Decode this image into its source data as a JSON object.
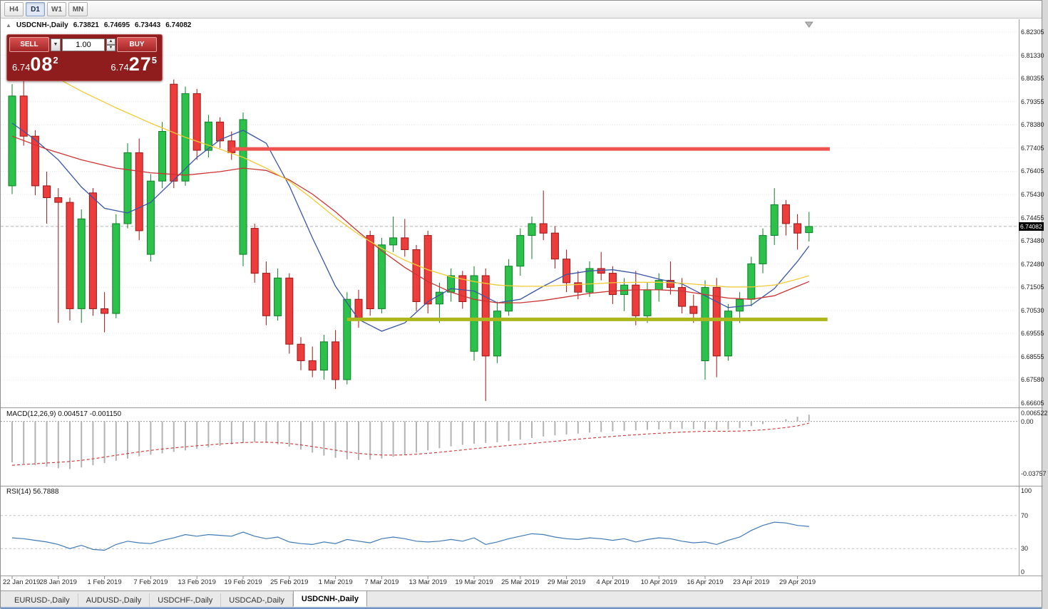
{
  "toolbar": {
    "timeframes": [
      "H4",
      "D1",
      "W1",
      "MN"
    ],
    "active": "D1"
  },
  "symbol_info": {
    "title": "USDCNH-,Daily",
    "ohlc": [
      "6.73821",
      "6.74695",
      "6.73443",
      "6.74082"
    ]
  },
  "trade_panel": {
    "sell_label": "SELL",
    "buy_label": "BUY",
    "volume": "1.00",
    "sell_price": {
      "main": "6.74",
      "pips": "08",
      "pt": "2"
    },
    "buy_price": {
      "main": "6.74",
      "pips": "27",
      "pt": "5"
    }
  },
  "price_axis_labels": [
    "6.82305",
    "6.81330",
    "6.80355",
    "6.79355",
    "6.78380",
    "6.77405",
    "6.76405",
    "6.75430",
    "6.74455",
    "6.73480",
    "6.72480",
    "6.71505",
    "6.70530",
    "6.69555",
    "6.68555",
    "6.67580",
    "6.66605"
  ],
  "current_price": "6.74082",
  "macd_panel": {
    "label": "MACD(12,26,9) 0.004517 -0.001150",
    "axis_labels": [
      "0.006522",
      "0.00",
      "-0.03757"
    ]
  },
  "rsi_panel": {
    "label": "RSI(14) 56.7888",
    "axis_labels": [
      "100",
      "70",
      "30",
      "0"
    ]
  },
  "date_axis": {
    "labels": [
      {
        "text": "22 Jan 2019",
        "index": 0
      },
      {
        "text": "28 Jan 2019",
        "index": 4
      },
      {
        "text": "1 Feb 2019",
        "index": 8
      },
      {
        "text": "7 Feb 2019",
        "index": 12
      },
      {
        "text": "13 Feb 2019",
        "index": 16
      },
      {
        "text": "19 Feb 2019",
        "index": 20
      },
      {
        "text": "25 Feb 2019",
        "index": 24
      },
      {
        "text": "1 Mar 2019",
        "index": 28
      },
      {
        "text": "7 Mar 2019",
        "index": 32
      },
      {
        "text": "13 Mar 2019",
        "index": 36
      },
      {
        "text": "19 Mar 2019",
        "index": 40
      },
      {
        "text": "25 Mar 2019",
        "index": 44
      },
      {
        "text": "29 Mar 2019",
        "index": 48
      },
      {
        "text": "4 Apr 2019",
        "index": 52
      },
      {
        "text": "10 Apr 2019",
        "index": 56
      },
      {
        "text": "16 Apr 2019",
        "index": 60
      },
      {
        "text": "23 Apr 2019",
        "index": 64
      },
      {
        "text": "29 Apr 2019",
        "index": 68
      }
    ]
  },
  "tabs": [
    "EURUSD-,Daily",
    "AUDUSD-,Daily",
    "USDCHF-,Daily",
    "USDCAD-,Daily",
    "USDCNH-,Daily"
  ],
  "active_tab": "USDCNH-,Daily",
  "colors": {
    "up": "#2bc14a",
    "up_border": "#0f7f2a",
    "down": "#ed3c3c",
    "down_border": "#9c1616",
    "ma_fast": "#3a55a4",
    "ma_mid": "#cc3333",
    "ma_slow": "#f1cb35",
    "resistance": "#ef5350",
    "support": "#adb71c",
    "macd_bar": "#b3b3b3",
    "macd_signal": "#cc3333",
    "rsi_line": "#4079b5",
    "price_tag_bg": "#000000"
  },
  "chart_data": {
    "type": "candlestick",
    "symbol": "USDCNH",
    "timeframe": "Daily",
    "title": "USDCNH-,Daily",
    "price_range": {
      "top": 6.82305,
      "bottom": 6.66605
    },
    "bid": 6.74082,
    "shift_marker_index": 69,
    "candles": [
      [
        6.758,
        6.801,
        6.7545,
        6.796
      ],
      [
        6.796,
        6.8025,
        6.775,
        6.779
      ],
      [
        6.779,
        6.7815,
        6.754,
        6.758
      ],
      [
        6.758,
        6.764,
        6.742,
        6.753
      ],
      [
        6.753,
        6.757,
        6.7,
        6.751
      ],
      [
        6.751,
        6.753,
        6.701,
        6.706
      ],
      [
        6.706,
        6.748,
        6.7,
        6.744
      ],
      [
        6.755,
        6.757,
        6.703,
        6.706
      ],
      [
        6.706,
        6.713,
        6.696,
        6.704
      ],
      [
        6.704,
        6.746,
        6.702,
        6.742
      ],
      [
        6.742,
        6.776,
        6.74,
        6.772
      ],
      [
        6.772,
        6.778,
        6.735,
        6.739
      ],
      [
        6.729,
        6.763,
        6.726,
        6.76
      ],
      [
        6.76,
        6.785,
        6.757,
        6.781
      ],
      [
        6.801,
        6.803,
        6.757,
        6.76
      ],
      [
        6.76,
        6.8,
        6.758,
        6.797
      ],
      [
        6.797,
        6.799,
        6.769,
        6.773
      ],
      [
        6.773,
        6.788,
        6.77,
        6.785
      ],
      [
        6.785,
        6.787,
        6.774,
        6.777
      ],
      [
        6.777,
        6.781,
        6.769,
        6.772
      ],
      [
        6.729,
        6.789,
        6.724,
        6.786
      ],
      [
        6.74,
        6.742,
        6.717,
        6.721
      ],
      [
        6.721,
        6.726,
        6.699,
        6.703
      ],
      [
        6.703,
        6.723,
        6.701,
        6.719
      ],
      [
        6.719,
        6.721,
        6.687,
        6.691
      ],
      [
        6.691,
        6.694,
        6.68,
        6.684
      ],
      [
        6.684,
        6.69,
        6.677,
        6.68
      ],
      [
        6.68,
        6.695,
        6.676,
        6.692
      ],
      [
        6.692,
        6.697,
        6.672,
        6.676
      ],
      [
        6.676,
        6.713,
        6.674,
        6.71
      ],
      [
        6.71,
        6.714,
        6.698,
        6.702
      ],
      [
        6.737,
        6.739,
        6.703,
        6.706
      ],
      [
        6.706,
        6.736,
        6.704,
        6.733
      ],
      [
        6.733,
        6.745,
        6.73,
        6.736
      ],
      [
        6.736,
        6.744,
        6.728,
        6.731
      ],
      [
        6.731,
        6.733,
        6.705,
        6.709
      ],
      [
        6.737,
        6.739,
        6.704,
        6.708
      ],
      [
        6.708,
        6.717,
        6.7,
        6.713
      ],
      [
        6.713,
        6.723,
        6.709,
        6.72
      ],
      [
        6.72,
        6.722,
        6.706,
        6.709
      ],
      [
        6.688,
        6.724,
        6.684,
        6.72
      ],
      [
        6.72,
        6.723,
        6.667,
        6.686
      ],
      [
        6.686,
        6.709,
        6.683,
        6.705
      ],
      [
        6.705,
        6.727,
        6.703,
        6.724
      ],
      [
        6.724,
        6.74,
        6.72,
        6.737
      ],
      [
        6.737,
        6.745,
        6.727,
        6.742
      ],
      [
        6.742,
        6.756,
        6.735,
        6.738
      ],
      [
        6.738,
        6.741,
        6.723,
        6.727
      ],
      [
        6.727,
        6.731,
        6.713,
        6.717
      ],
      [
        6.717,
        6.722,
        6.71,
        6.713
      ],
      [
        6.713,
        6.726,
        6.711,
        6.723
      ],
      [
        6.723,
        6.73,
        6.718,
        6.721
      ],
      [
        6.721,
        6.724,
        6.708,
        6.712
      ],
      [
        6.712,
        6.719,
        6.705,
        6.716
      ],
      [
        6.716,
        6.722,
        6.699,
        6.703
      ],
      [
        6.703,
        6.717,
        6.7,
        6.714
      ],
      [
        6.714,
        6.721,
        6.709,
        6.718
      ],
      [
        6.718,
        6.726,
        6.712,
        6.715
      ],
      [
        6.715,
        6.719,
        6.704,
        6.707
      ],
      [
        6.707,
        6.712,
        6.7,
        6.704
      ],
      [
        6.684,
        6.718,
        6.676,
        6.715
      ],
      [
        6.715,
        6.719,
        6.677,
        6.686
      ],
      [
        6.686,
        6.708,
        6.684,
        6.705
      ],
      [
        6.705,
        6.713,
        6.7,
        6.71
      ],
      [
        6.71,
        6.728,
        6.707,
        6.725
      ],
      [
        6.725,
        6.74,
        6.721,
        6.737
      ],
      [
        6.737,
        6.757,
        6.733,
        6.75
      ],
      [
        6.75,
        6.752,
        6.737,
        6.742
      ],
      [
        6.742,
        6.746,
        6.731,
        6.738
      ],
      [
        6.7382,
        6.74695,
        6.73443,
        6.74082
      ]
    ],
    "moving_averages": [
      {
        "name": "fast-blue",
        "color_key": "ma_fast",
        "points": [
          [
            0,
            6.7845
          ],
          [
            2,
            6.7775
          ],
          [
            4,
            6.769
          ],
          [
            6,
            6.7575
          ],
          [
            8,
            6.7485
          ],
          [
            10,
            6.7465
          ],
          [
            12,
            6.751
          ],
          [
            14,
            6.7605
          ],
          [
            16,
            6.77
          ],
          [
            18,
            6.7775
          ],
          [
            20,
            6.7815
          ],
          [
            22,
            6.776
          ],
          [
            24,
            6.758
          ],
          [
            26,
            6.736
          ],
          [
            28,
            6.7155
          ],
          [
            30,
            6.7015
          ],
          [
            32,
            6.6965
          ],
          [
            34,
            6.7
          ],
          [
            36,
            6.709
          ],
          [
            38,
            6.7145
          ],
          [
            40,
            6.7135
          ],
          [
            42,
            6.7085
          ],
          [
            44,
            6.71
          ],
          [
            46,
            6.7155
          ],
          [
            48,
            6.7205
          ],
          [
            50,
            6.722
          ],
          [
            52,
            6.7225
          ],
          [
            54,
            6.721
          ],
          [
            56,
            6.7185
          ],
          [
            58,
            6.7165
          ],
          [
            60,
            6.7115
          ],
          [
            62,
            6.7065
          ],
          [
            64,
            6.7075
          ],
          [
            66,
            6.7145
          ],
          [
            68,
            6.726
          ],
          [
            69,
            6.7325
          ]
        ]
      },
      {
        "name": "mid-red",
        "color_key": "ma_mid",
        "points": [
          [
            0,
            6.779
          ],
          [
            3,
            6.7735
          ],
          [
            6,
            6.769
          ],
          [
            9,
            6.7655
          ],
          [
            12,
            6.7635
          ],
          [
            15,
            6.7625
          ],
          [
            18,
            6.764
          ],
          [
            20,
            6.7655
          ],
          [
            22,
            6.7645
          ],
          [
            24,
            6.7605
          ],
          [
            26,
            6.7545
          ],
          [
            28,
            6.747
          ],
          [
            30,
            6.7385
          ],
          [
            32,
            6.7305
          ],
          [
            34,
            6.7235
          ],
          [
            36,
            6.7175
          ],
          [
            38,
            6.713
          ],
          [
            40,
            6.71
          ],
          [
            42,
            6.7085
          ],
          [
            44,
            6.7085
          ],
          [
            46,
            6.7095
          ],
          [
            48,
            6.711
          ],
          [
            50,
            6.7125
          ],
          [
            52,
            6.7135
          ],
          [
            54,
            6.714
          ],
          [
            56,
            6.714
          ],
          [
            58,
            6.7135
          ],
          [
            60,
            6.712
          ],
          [
            62,
            6.7105
          ],
          [
            64,
            6.71
          ],
          [
            66,
            6.7115
          ],
          [
            68,
            6.7155
          ],
          [
            69,
            6.7175
          ]
        ]
      },
      {
        "name": "slow-yellow",
        "color_key": "ma_slow",
        "points": [
          [
            0,
            6.8145
          ],
          [
            3,
            6.806
          ],
          [
            6,
            6.798
          ],
          [
            9,
            6.791
          ],
          [
            12,
            6.7845
          ],
          [
            15,
            6.7785
          ],
          [
            18,
            6.7735
          ],
          [
            20,
            6.77
          ],
          [
            22,
            6.7655
          ],
          [
            24,
            6.76
          ],
          [
            26,
            6.7525
          ],
          [
            28,
            6.7445
          ],
          [
            30,
            6.7375
          ],
          [
            32,
            6.7315
          ],
          [
            34,
            6.7265
          ],
          [
            36,
            6.7225
          ],
          [
            38,
            6.7195
          ],
          [
            40,
            6.7175
          ],
          [
            42,
            6.716
          ],
          [
            44,
            6.7155
          ],
          [
            46,
            6.7155
          ],
          [
            48,
            6.716
          ],
          [
            50,
            6.7165
          ],
          [
            52,
            6.717
          ],
          [
            54,
            6.7172
          ],
          [
            56,
            6.7172
          ],
          [
            58,
            6.7168
          ],
          [
            60,
            6.716
          ],
          [
            62,
            6.7152
          ],
          [
            64,
            6.7152
          ],
          [
            66,
            6.716
          ],
          [
            68,
            6.7185
          ],
          [
            69,
            6.72
          ]
        ]
      }
    ],
    "horizontal_lines": [
      {
        "role": "resistance",
        "price": 6.7736,
        "start_index": 19,
        "end_index": 70.8
      },
      {
        "role": "support",
        "price": 6.7015,
        "start_index": 29,
        "end_index": 70.6
      }
    ],
    "macd": {
      "range": {
        "top": 0.006522,
        "bottom": -0.03757
      },
      "histogram": [
        -0.0275,
        -0.0285,
        -0.0295,
        -0.0305,
        -0.0315,
        -0.032,
        -0.031,
        -0.0295,
        -0.028,
        -0.0265,
        -0.025,
        -0.0235,
        -0.0225,
        -0.0215,
        -0.0205,
        -0.0195,
        -0.0185,
        -0.0175,
        -0.0165,
        -0.0155,
        -0.0145,
        -0.014,
        -0.0145,
        -0.0155,
        -0.017,
        -0.019,
        -0.021,
        -0.023,
        -0.0245,
        -0.0255,
        -0.026,
        -0.0258,
        -0.025,
        -0.0238,
        -0.0225,
        -0.021,
        -0.0195,
        -0.018,
        -0.0168,
        -0.0158,
        -0.015,
        -0.0145,
        -0.014,
        -0.0132,
        -0.0122,
        -0.0112,
        -0.0102,
        -0.0094,
        -0.0088,
        -0.0082,
        -0.0076,
        -0.0071,
        -0.0067,
        -0.0063,
        -0.006,
        -0.0057,
        -0.0054,
        -0.0052,
        -0.0051,
        -0.0051,
        -0.0053,
        -0.0056,
        -0.0054,
        -0.0045,
        -0.0032,
        -0.0018,
        -0.0002,
        0.0015,
        0.0032,
        0.0045
      ],
      "signal": [
        -0.0295,
        -0.029,
        -0.0285,
        -0.028,
        -0.0275,
        -0.027,
        -0.0262,
        -0.0252,
        -0.024,
        -0.0228,
        -0.0216,
        -0.0205,
        -0.0195,
        -0.0186,
        -0.0178,
        -0.0171,
        -0.0164,
        -0.0158,
        -0.0152,
        -0.0147,
        -0.0143,
        -0.014,
        -0.014,
        -0.0143,
        -0.0149,
        -0.0158,
        -0.0169,
        -0.0181,
        -0.0193,
        -0.0205,
        -0.0215,
        -0.0222,
        -0.0226,
        -0.0227,
        -0.0225,
        -0.0221,
        -0.0215,
        -0.0208,
        -0.02,
        -0.0192,
        -0.0184,
        -0.0176,
        -0.0169,
        -0.0162,
        -0.0155,
        -0.0148,
        -0.0141,
        -0.0134,
        -0.0127,
        -0.012,
        -0.0113,
        -0.0107,
        -0.0101,
        -0.0095,
        -0.009,
        -0.0085,
        -0.008,
        -0.0076,
        -0.0072,
        -0.0069,
        -0.0067,
        -0.0066,
        -0.0066,
        -0.0065,
        -0.0062,
        -0.0057,
        -0.005,
        -0.0041,
        -0.003,
        -0.00115
      ]
    },
    "rsi": {
      "range": [
        0,
        100
      ],
      "levels": [
        70,
        30
      ],
      "values": [
        43,
        42,
        40,
        38,
        35,
        30,
        34,
        29,
        28,
        35,
        39,
        37,
        36,
        40,
        43,
        47,
        45,
        47,
        46,
        45,
        50,
        45,
        42,
        44,
        38,
        36,
        35,
        38,
        36,
        41,
        39,
        37,
        42,
        44,
        42,
        39,
        38,
        39,
        41,
        39,
        43,
        35,
        38,
        42,
        45,
        48,
        47,
        44,
        42,
        41,
        43,
        42,
        40,
        42,
        38,
        41,
        43,
        42,
        39,
        37,
        38,
        35,
        40,
        44,
        52,
        58,
        62,
        61,
        58,
        56.8
      ]
    }
  }
}
